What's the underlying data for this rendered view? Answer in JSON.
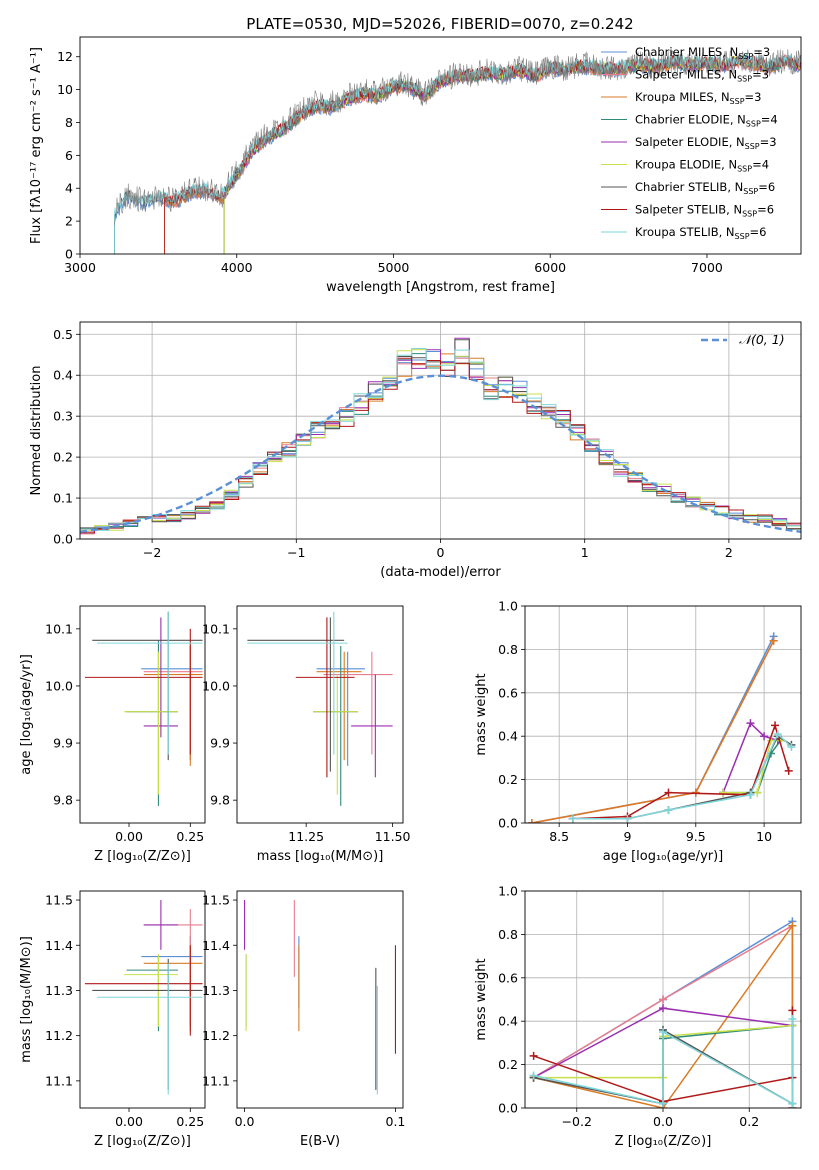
{
  "figure": {
    "title": "PLATE=0530, MJD=52026, FIBERID=0070, z=0.242"
  },
  "model_colors": {
    "Chabrier MILES": "#5b8fd6",
    "Salpeter MILES": "#e87d8e",
    "Kroupa MILES": "#d97b24",
    "Chabrier ELODIE": "#2e8b7a",
    "Salpeter ELODIE": "#9a2eb0",
    "Kroupa ELODIE": "#c8e04a",
    "Chabrier STELIB": "#555555",
    "Salpeter STELIB": "#b01818",
    "Kroupa STELIB": "#7fd6da"
  },
  "chart_data": [
    {
      "id": "spectrum",
      "type": "line",
      "title": "PLATE=0530, MJD=52026, FIBERID=0070, z=0.242",
      "xlabel": "wavelength [Angstrom, rest frame]",
      "ylabel": "Flux [fλ10⁻¹⁷ erg cm⁻² s⁻¹ A⁻¹]",
      "xlim": [
        3000,
        7600
      ],
      "ylim": [
        0,
        13.2
      ],
      "xticks": [
        3000,
        4000,
        5000,
        6000,
        7000
      ],
      "yticks": [
        0,
        2,
        4,
        6,
        8,
        10,
        12
      ],
      "grid": false,
      "legend_position": "upper-right",
      "x": [
        3220,
        3300,
        3400,
        3500,
        3600,
        3700,
        3800,
        3900,
        4000,
        4100,
        4200,
        4300,
        4400,
        4500,
        4600,
        4700,
        4800,
        4900,
        5000,
        5100,
        5200,
        5300,
        5400,
        5500,
        5600,
        5700,
        5800,
        5900,
        6000,
        6100,
        6200,
        6300,
        6400,
        6500,
        6600,
        6700,
        6800,
        6900,
        7000,
        7100,
        7200,
        7300,
        7400,
        7500,
        7600
      ],
      "observed": [
        2.5,
        3.6,
        3.2,
        3.5,
        3.3,
        3.8,
        4.0,
        3.5,
        5.0,
        6.5,
        7.3,
        7.9,
        8.6,
        9.2,
        9.1,
        9.6,
        9.9,
        9.8,
        10.4,
        10.3,
        9.7,
        10.6,
        10.9,
        10.9,
        11.1,
        11.0,
        11.3,
        10.9,
        11.4,
        11.3,
        11.5,
        11.4,
        11.3,
        11.5,
        11.6,
        11.5,
        11.8,
        11.6,
        11.7,
        11.6,
        11.8,
        11.7,
        11.5,
        11.8,
        11.6
      ],
      "model": [
        2.4,
        3.5,
        3.1,
        3.4,
        3.2,
        3.7,
        3.9,
        3.4,
        4.8,
        6.3,
        7.1,
        7.6,
        8.4,
        9.0,
        8.9,
        9.4,
        9.7,
        9.6,
        10.2,
        10.2,
        9.6,
        10.5,
        10.8,
        10.8,
        11.0,
        10.9,
        11.2,
        10.8,
        11.3,
        11.2,
        11.4,
        11.3,
        11.2,
        11.4,
        11.5,
        11.4,
        11.7,
        11.5,
        11.6,
        11.5,
        11.7,
        11.6,
        11.4,
        11.7,
        11.5
      ],
      "series": [
        {
          "name": "Chabrier MILES, N_SSP=3"
        },
        {
          "name": "Salpeter MILES, N_SSP=3"
        },
        {
          "name": "Kroupa MILES, N_SSP=3"
        },
        {
          "name": "Chabrier ELODIE, N_SSP=4"
        },
        {
          "name": "Salpeter ELODIE, N_SSP=3"
        },
        {
          "name": "Kroupa ELODIE, N_SSP=4"
        },
        {
          "name": "Chabrier STELIB, N_SSP=6"
        },
        {
          "name": "Salpeter STELIB, N_SSP=6"
        },
        {
          "name": "Kroupa STELIB, N_SSP=6"
        }
      ]
    },
    {
      "id": "residuals",
      "type": "line",
      "xlabel": "(data-model)/error",
      "ylabel": "Normed distribution",
      "xlim": [
        -2.5,
        2.5
      ],
      "ylim": [
        0,
        0.53
      ],
      "xticks": [
        -2,
        -1,
        0,
        1,
        2
      ],
      "yticks": [
        0.0,
        0.1,
        0.2,
        0.3,
        0.4,
        0.5
      ],
      "grid": true,
      "legend_position": "upper-right",
      "legend_label": "𝒩(0, 1)",
      "bin_edges": [
        -2.5,
        -2.4,
        -2.3,
        -2.2,
        -2.1,
        -2.0,
        -1.9,
        -1.8,
        -1.7,
        -1.6,
        -1.5,
        -1.4,
        -1.3,
        -1.2,
        -1.1,
        -1.0,
        -0.9,
        -0.8,
        -0.7,
        -0.6,
        -0.5,
        -0.4,
        -0.3,
        -0.2,
        -0.1,
        0.0,
        0.1,
        0.2,
        0.3,
        0.4,
        0.5,
        0.6,
        0.7,
        0.8,
        0.9,
        1.0,
        1.1,
        1.2,
        1.3,
        1.4,
        1.5,
        1.6,
        1.7,
        1.8,
        1.9,
        2.0,
        2.1,
        2.2,
        2.3,
        2.4,
        2.5
      ],
      "histogram_base": [
        0.02,
        0.025,
        0.03,
        0.04,
        0.05,
        0.05,
        0.05,
        0.06,
        0.07,
        0.08,
        0.11,
        0.14,
        0.17,
        0.2,
        0.22,
        0.25,
        0.27,
        0.29,
        0.3,
        0.33,
        0.36,
        0.38,
        0.43,
        0.44,
        0.44,
        0.42,
        0.46,
        0.42,
        0.37,
        0.37,
        0.36,
        0.33,
        0.31,
        0.29,
        0.26,
        0.23,
        0.2,
        0.17,
        0.15,
        0.13,
        0.12,
        0.1,
        0.09,
        0.08,
        0.07,
        0.06,
        0.05,
        0.05,
        0.04,
        0.03
      ]
    },
    {
      "id": "age-vs-Z",
      "type": "scatter",
      "xlabel": "Z [log₁₀(Z/Z⊙)]",
      "ylabel": "age  [log₁₀(age/yr)]",
      "xlim": [
        -0.2,
        0.31
      ],
      "ylim": [
        9.76,
        10.14
      ],
      "xticks": [
        0.0,
        0.25
      ],
      "xtick_labels": [
        "0.00",
        "0.25"
      ],
      "yticks": [
        9.8,
        9.9,
        10.0,
        10.1
      ],
      "grid": false,
      "points": [
        {
          "model": "Chabrier MILES",
          "x": 0.25,
          "xlo": 0.05,
          "xhi": 0.3,
          "y": 10.03,
          "ylo": 9.87,
          "yhi": 10.07
        },
        {
          "model": "Salpeter MILES",
          "x": 0.25,
          "xlo": 0.06,
          "xhi": 0.3,
          "y": 10.025,
          "ylo": 9.87,
          "yhi": 10.07
        },
        {
          "model": "Kroupa MILES",
          "x": 0.25,
          "xlo": 0.06,
          "xhi": 0.3,
          "y": 10.02,
          "ylo": 9.86,
          "yhi": 10.07
        },
        {
          "model": "Chabrier ELODIE",
          "x": 0.12,
          "xlo": -0.01,
          "xhi": 0.2,
          "y": 9.955,
          "ylo": 9.79,
          "yhi": 10.08
        },
        {
          "model": "Salpeter ELODIE",
          "x": 0.13,
          "xlo": 0.06,
          "xhi": 0.2,
          "y": 9.93,
          "ylo": 9.91,
          "yhi": 10.12
        },
        {
          "model": "Kroupa ELODIE",
          "x": 0.12,
          "xlo": -0.02,
          "xhi": 0.2,
          "y": 9.955,
          "ylo": 9.81,
          "yhi": 10.06
        },
        {
          "model": "Chabrier STELIB",
          "x": 0.16,
          "xlo": -0.15,
          "xhi": 0.3,
          "y": 10.08,
          "ylo": 9.87,
          "yhi": 10.13
        },
        {
          "model": "Salpeter STELIB",
          "x": 0.25,
          "xlo": -0.18,
          "xhi": 0.3,
          "y": 10.015,
          "ylo": 9.88,
          "yhi": 10.1
        },
        {
          "model": "Kroupa STELIB",
          "x": 0.16,
          "xlo": -0.13,
          "xhi": 0.3,
          "y": 10.075,
          "ylo": 9.88,
          "yhi": 10.13
        }
      ]
    },
    {
      "id": "age-vs-mass",
      "type": "scatter",
      "xlabel": "mass [log₁₀(M/M⊙)]",
      "ylabel": "",
      "xlim": [
        11.05,
        11.53
      ],
      "ylim": [
        9.76,
        10.14
      ],
      "xticks": [
        11.25,
        11.5
      ],
      "xtick_labels": [
        "11.25",
        "11.50"
      ],
      "yticks": [
        9.8,
        9.9,
        10.0,
        10.1
      ],
      "grid": false,
      "points": [
        {
          "model": "Chabrier MILES",
          "x": 11.37,
          "xlo": 11.28,
          "xhi": 11.42,
          "y": 10.03,
          "ylo": 9.86,
          "yhi": 10.06
        },
        {
          "model": "Salpeter MILES",
          "x": 11.44,
          "xlo": 11.3,
          "xhi": 11.5,
          "y": 10.02,
          "ylo": 9.88,
          "yhi": 10.06
        },
        {
          "model": "Kroupa MILES",
          "x": 11.36,
          "xlo": 11.28,
          "xhi": 11.41,
          "y": 10.025,
          "ylo": 9.87,
          "yhi": 10.06
        },
        {
          "model": "Chabrier ELODIE",
          "x": 11.35,
          "xlo": 11.27,
          "xhi": 11.4,
          "y": 9.955,
          "ylo": 9.79,
          "yhi": 10.07
        },
        {
          "model": "Salpeter ELODIE",
          "x": 11.45,
          "xlo": 11.38,
          "xhi": 11.5,
          "y": 9.93,
          "ylo": 9.84,
          "yhi": 10.02
        },
        {
          "model": "Kroupa ELODIE",
          "x": 11.34,
          "xlo": 11.27,
          "xhi": 11.4,
          "y": 9.955,
          "ylo": 9.81,
          "yhi": 10.02
        },
        {
          "model": "Chabrier STELIB",
          "x": 11.32,
          "xlo": 11.08,
          "xhi": 11.36,
          "y": 10.08,
          "ylo": 9.85,
          "yhi": 10.12
        },
        {
          "model": "Salpeter STELIB",
          "x": 11.31,
          "xlo": 11.22,
          "xhi": 11.39,
          "y": 10.015,
          "ylo": 9.84,
          "yhi": 10.12
        },
        {
          "model": "Kroupa STELIB",
          "x": 11.33,
          "xlo": 11.08,
          "xhi": 11.37,
          "y": 10.075,
          "ylo": 9.88,
          "yhi": 10.13
        }
      ]
    },
    {
      "id": "mass-weight-vs-age",
      "type": "line",
      "xlabel": "age  [log₁₀(age/yr)]",
      "ylabel": "mass weight",
      "xlim": [
        8.25,
        10.27
      ],
      "ylim": [
        0,
        1.0
      ],
      "xticks": [
        8.5,
        9.0,
        9.5,
        10.0
      ],
      "yticks": [
        0.0,
        0.2,
        0.4,
        0.6,
        0.8,
        1.0
      ],
      "grid": true,
      "series": [
        {
          "model": "Chabrier MILES",
          "x": [
            8.3,
            9.5,
            10.07
          ],
          "y": [
            0.0,
            0.14,
            0.86
          ]
        },
        {
          "model": "Salpeter MILES",
          "x": [
            8.3,
            9.5,
            10.07
          ],
          "y": [
            0.0,
            0.14,
            0.84
          ]
        },
        {
          "model": "Kroupa MILES",
          "x": [
            8.3,
            9.5,
            10.07
          ],
          "y": [
            0.0,
            0.14,
            0.84
          ]
        },
        {
          "model": "Chabrier ELODIE",
          "x": [
            9.7,
            9.95,
            10.05,
            10.12
          ],
          "y": [
            0.14,
            0.14,
            0.32,
            0.38
          ]
        },
        {
          "model": "Salpeter ELODIE",
          "x": [
            9.7,
            9.9,
            10.0,
            10.1
          ],
          "y": [
            0.14,
            0.46,
            0.4,
            0.38
          ]
        },
        {
          "model": "Kroupa ELODIE",
          "x": [
            9.7,
            9.95,
            10.05,
            10.12
          ],
          "y": [
            0.14,
            0.14,
            0.38,
            0.38
          ]
        },
        {
          "model": "Chabrier STELIB",
          "x": [
            8.6,
            9.0,
            9.3,
            9.9,
            10.1,
            10.2
          ],
          "y": [
            0.02,
            0.02,
            0.06,
            0.14,
            0.4,
            0.36
          ]
        },
        {
          "model": "Salpeter STELIB",
          "x": [
            8.6,
            9.0,
            9.3,
            9.9,
            10.08,
            10.18
          ],
          "y": [
            0.02,
            0.03,
            0.14,
            0.13,
            0.45,
            0.24
          ]
        },
        {
          "model": "Kroupa STELIB",
          "x": [
            8.6,
            9.0,
            9.3,
            9.9,
            10.1,
            10.2
          ],
          "y": [
            0.02,
            0.02,
            0.06,
            0.13,
            0.41,
            0.35
          ]
        }
      ]
    },
    {
      "id": "mass-vs-Z",
      "type": "scatter",
      "xlabel": "Z [log₁₀(Z/Z⊙)]",
      "ylabel": "mass [log₁₀(M/M⊙)]",
      "xlim": [
        -0.2,
        0.31
      ],
      "ylim": [
        11.04,
        11.52
      ],
      "xticks": [
        0.0,
        0.25
      ],
      "xtick_labels": [
        "0.00",
        "0.25"
      ],
      "yticks": [
        11.1,
        11.2,
        11.3,
        11.4,
        11.5
      ],
      "grid": false,
      "points": [
        {
          "model": "Chabrier MILES",
          "x": 0.25,
          "xlo": 0.05,
          "xhi": 0.3,
          "y": 11.375,
          "ylo": 11.22,
          "yhi": 11.42
        },
        {
          "model": "Salpeter MILES",
          "x": 0.25,
          "xlo": 0.06,
          "xhi": 0.3,
          "y": 11.445,
          "ylo": 11.22,
          "yhi": 11.48
        },
        {
          "model": "Kroupa MILES",
          "x": 0.25,
          "xlo": 0.06,
          "xhi": 0.3,
          "y": 11.36,
          "ylo": 11.21,
          "yhi": 11.4
        },
        {
          "model": "Chabrier ELODIE",
          "x": 0.12,
          "xlo": -0.01,
          "xhi": 0.2,
          "y": 11.345,
          "ylo": 11.21,
          "yhi": 11.38
        },
        {
          "model": "Salpeter ELODIE",
          "x": 0.13,
          "xlo": 0.06,
          "xhi": 0.2,
          "y": 11.445,
          "ylo": 11.39,
          "yhi": 11.5
        },
        {
          "model": "Kroupa ELODIE",
          "x": 0.12,
          "xlo": -0.02,
          "xhi": 0.2,
          "y": 11.335,
          "ylo": 11.22,
          "yhi": 11.38
        },
        {
          "model": "Chabrier STELIB",
          "x": 0.16,
          "xlo": -0.15,
          "xhi": 0.3,
          "y": 11.3,
          "ylo": 11.08,
          "yhi": 11.37
        },
        {
          "model": "Salpeter STELIB",
          "x": 0.25,
          "xlo": -0.18,
          "xhi": 0.3,
          "y": 11.315,
          "ylo": 11.2,
          "yhi": 11.4
        },
        {
          "model": "Kroupa STELIB",
          "x": 0.16,
          "xlo": -0.13,
          "xhi": 0.3,
          "y": 11.285,
          "ylo": 11.07,
          "yhi": 11.36
        }
      ]
    },
    {
      "id": "mass-vs-EBV",
      "type": "scatter",
      "xlabel": "E(B-V)",
      "ylabel": "",
      "xlim": [
        -0.005,
        0.105
      ],
      "ylim": [
        11.04,
        11.52
      ],
      "xticks": [
        0.0,
        0.1
      ],
      "xtick_labels": [
        "0.0",
        "0.1"
      ],
      "yticks": [
        11.1,
        11.2,
        11.3,
        11.4,
        11.5
      ],
      "grid": false,
      "points": [
        {
          "model": "Chabrier MILES",
          "x": 0.036,
          "y": 11.375,
          "ylo": 11.26,
          "yhi": 11.42
        },
        {
          "model": "Salpeter MILES",
          "x": 0.033,
          "y": 11.445,
          "ylo": 11.33,
          "yhi": 11.5
        },
        {
          "model": "Kroupa MILES",
          "x": 0.036,
          "y": 11.36,
          "ylo": 11.21,
          "yhi": 11.4
        },
        {
          "model": "Chabrier ELODIE",
          "x": 0.001,
          "y": 11.345,
          "ylo": 11.22,
          "yhi": 11.38
        },
        {
          "model": "Salpeter ELODIE",
          "x": 0.0,
          "y": 11.445,
          "ylo": 11.39,
          "yhi": 11.5
        },
        {
          "model": "Kroupa ELODIE",
          "x": 0.001,
          "y": 11.335,
          "ylo": 11.21,
          "yhi": 11.38
        },
        {
          "model": "Chabrier STELIB",
          "x": 0.087,
          "y": 11.3,
          "ylo": 11.08,
          "yhi": 11.35
        },
        {
          "model": "Salpeter STELIB",
          "x": 0.1,
          "y": 11.315,
          "ylo": 11.16,
          "yhi": 11.4
        },
        {
          "model": "Kroupa STELIB",
          "x": 0.088,
          "y": 11.285,
          "ylo": 11.07,
          "yhi": 11.31
        }
      ]
    },
    {
      "id": "mass-weight-vs-Z",
      "type": "line",
      "xlabel": "Z [log₁₀(Z/Z⊙)]",
      "ylabel": "mass weight",
      "xlim": [
        -0.32,
        0.32
      ],
      "ylim": [
        0,
        1.0
      ],
      "xticks": [
        -0.2,
        0.0,
        0.2
      ],
      "xtick_labels": [
        "−0.2",
        "0.0",
        "0.2"
      ],
      "yticks": [
        0.0,
        0.2,
        0.4,
        0.6,
        0.8,
        1.0
      ],
      "grid": true,
      "series": [
        {
          "model": "Chabrier MILES",
          "x": [
            -0.3,
            0.0,
            0.3,
            0.3
          ],
          "y": [
            0.14,
            0.5,
            0.86,
            0.0
          ]
        },
        {
          "model": "Salpeter MILES",
          "x": [
            -0.3,
            0.0,
            0.3,
            0.3
          ],
          "y": [
            0.14,
            0.5,
            0.84,
            0.0
          ]
        },
        {
          "model": "Kroupa MILES",
          "x": [
            -0.3,
            0.0,
            0.3,
            0.3
          ],
          "y": [
            0.14,
            0.0,
            0.84,
            0.0
          ]
        },
        {
          "model": "Chabrier ELODIE",
          "x": [
            0.0,
            0.3
          ],
          "y": [
            0.32,
            0.38
          ]
        },
        {
          "model": "Salpeter ELODIE",
          "x": [
            -0.3,
            0.0,
            0.3
          ],
          "y": [
            0.14,
            0.46,
            0.38
          ]
        },
        {
          "model": "Kroupa ELODIE",
          "x": [
            -0.3,
            0.0,
            0.0,
            0.3
          ],
          "y": [
            0.14,
            0.14,
            0.33,
            0.38
          ]
        },
        {
          "model": "Chabrier STELIB",
          "x": [
            -0.3,
            0.0,
            0.0,
            0.3
          ],
          "y": [
            0.14,
            0.02,
            0.36,
            0.02
          ]
        },
        {
          "model": "Salpeter STELIB",
          "x": [
            -0.3,
            0.0,
            0.3,
            0.3
          ],
          "y": [
            0.24,
            0.03,
            0.14,
            0.45
          ]
        },
        {
          "model": "Kroupa STELIB",
          "x": [
            -0.3,
            0.0,
            0.0,
            0.3,
            0.3
          ],
          "y": [
            0.15,
            0.02,
            0.35,
            0.02,
            0.41
          ]
        }
      ]
    }
  ]
}
